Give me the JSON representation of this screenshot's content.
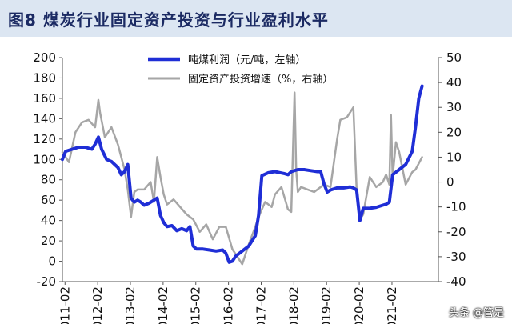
{
  "title": "图8  煤炭行业固定资产投资与行业盈利水平",
  "watermark": "头条 @管是",
  "chart_data": {
    "type": "line",
    "grid": false,
    "legend_position": "top-center",
    "x_ticks": [
      "2011-02",
      "2012-02",
      "2013-02",
      "2014-02",
      "2015-02",
      "2016-02",
      "2017-02",
      "2018-02",
      "2019-02",
      "2020-02",
      "2021-02"
    ],
    "x_range": [
      2011.0,
      2022.5
    ],
    "y_left": {
      "ticks": [
        -20,
        0,
        20,
        40,
        60,
        80,
        100,
        120,
        140,
        160,
        180,
        200
      ],
      "lim": [
        -20,
        200
      ]
    },
    "y_right": {
      "ticks": [
        -40,
        -30,
        -20,
        -10,
        0,
        10,
        20,
        30,
        40,
        50
      ],
      "lim": [
        -40,
        50
      ]
    },
    "colors": {
      "profit": "#1f2ed6",
      "investment": "#a6a6a6"
    },
    "series": [
      {
        "name": "吨煤利润（元/吨，左轴）",
        "axis": "left",
        "x": [
          2011.0,
          2011.1,
          2011.3,
          2011.5,
          2011.7,
          2011.9,
          2012.0,
          2012.1,
          2012.2,
          2012.35,
          2012.5,
          2012.7,
          2012.8,
          2012.9,
          2013.0,
          2013.1,
          2013.2,
          2013.3,
          2013.4,
          2013.5,
          2013.65,
          2013.8,
          2013.9,
          2014.0,
          2014.1,
          2014.2,
          2014.35,
          2014.5,
          2014.65,
          2014.8,
          2014.9,
          2015.0,
          2015.1,
          2015.3,
          2015.5,
          2015.7,
          2015.9,
          2016.0,
          2016.1,
          2016.2,
          2016.3,
          2016.5,
          2016.7,
          2016.8,
          2016.9,
          2017.0,
          2017.1,
          2017.3,
          2017.5,
          2017.65,
          2017.8,
          2017.9,
          2018.0,
          2018.2,
          2018.4,
          2018.6,
          2018.8,
          2018.9,
          2019.0,
          2019.1,
          2019.2,
          2019.4,
          2019.6,
          2019.8,
          2019.9,
          2020.0,
          2020.1,
          2020.2,
          2020.4,
          2020.6,
          2020.8,
          2020.9,
          2021.0,
          2021.1,
          2021.3,
          2021.5,
          2021.7,
          2021.8,
          2021.9,
          2022.0
        ],
        "y": [
          100,
          108,
          110,
          112,
          112,
          110,
          115,
          122,
          110,
          100,
          98,
          92,
          85,
          88,
          95,
          62,
          58,
          60,
          58,
          55,
          57,
          60,
          62,
          45,
          38,
          34,
          35,
          30,
          32,
          30,
          34,
          15,
          12,
          12,
          11,
          10,
          11,
          8,
          -1,
          0,
          5,
          10,
          15,
          20,
          25,
          45,
          84,
          87,
          88,
          87,
          86,
          85,
          88,
          90,
          90,
          89,
          88,
          88,
          76,
          68,
          70,
          72,
          72,
          73,
          72,
          70,
          40,
          52,
          52,
          53,
          55,
          56,
          58,
          85,
          90,
          95,
          108,
          132,
          160,
          172
        ]
      },
      {
        "name": "固定资产投资增速（%，右轴）",
        "axis": "right",
        "x": [
          2011.0,
          2011.2,
          2011.4,
          2011.6,
          2011.8,
          2012.0,
          2012.1,
          2012.15,
          2012.3,
          2012.5,
          2012.7,
          2012.9,
          2013.0,
          2013.1,
          2013.2,
          2013.3,
          2013.5,
          2013.7,
          2013.8,
          2013.9,
          2014.0,
          2014.1,
          2014.2,
          2014.4,
          2014.6,
          2014.8,
          2015.0,
          2015.2,
          2015.4,
          2015.6,
          2015.8,
          2016.0,
          2016.2,
          2016.4,
          2016.5,
          2016.7,
          2016.9,
          2017.0,
          2017.2,
          2017.4,
          2017.5,
          2017.7,
          2017.9,
          2018.0,
          2018.1,
          2018.15,
          2018.2,
          2018.3,
          2018.5,
          2018.7,
          2018.9,
          2019.0,
          2019.2,
          2019.4,
          2019.5,
          2019.7,
          2019.9,
          2020.0,
          2020.1,
          2020.2,
          2020.4,
          2020.6,
          2020.8,
          2020.9,
          2021.0,
          2021.05,
          2021.1,
          2021.2,
          2021.3,
          2021.5,
          2021.7,
          2021.8,
          2022.0
        ],
        "y": [
          12,
          8,
          20,
          24,
          25,
          22,
          33,
          28,
          18,
          22,
          15,
          5,
          -3,
          -14,
          -4,
          -3,
          -3,
          0,
          -8,
          10,
          2,
          -5,
          -9,
          -7,
          -10,
          -13,
          -15,
          -20,
          -17,
          -23,
          -18,
          -18,
          -27,
          -31,
          -33,
          -25,
          -18,
          -14,
          -8,
          -10,
          -5,
          -2,
          -11,
          -12,
          36,
          5,
          -4,
          -2,
          -3,
          -4,
          -2,
          -1,
          -2,
          17,
          25,
          26,
          30,
          -3,
          -15,
          -13,
          2,
          -2,
          0,
          3,
          -1,
          27,
          2,
          16,
          12,
          -1,
          4,
          5,
          10
        ]
      }
    ]
  }
}
